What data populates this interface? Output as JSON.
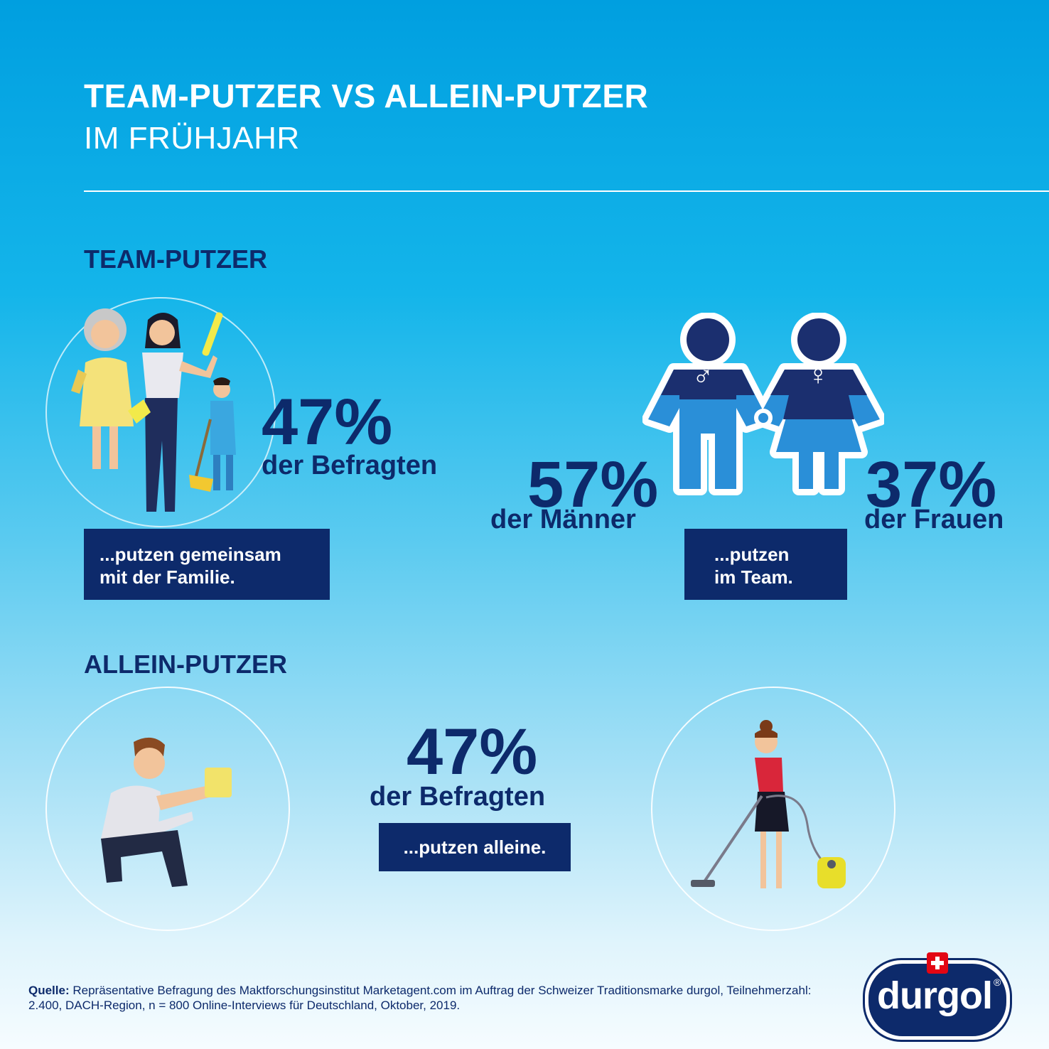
{
  "header": {
    "title": "TEAM-PUTZER VS ALLEIN-PUTZER",
    "subtitle": "IM FRÜHJAHR"
  },
  "team": {
    "heading": "TEAM-PUTZER",
    "family_percent": "47%",
    "family_label": "der Befragten",
    "family_box_line1": "...putzen gemeinsam",
    "family_box_line2": "mit der Familie.",
    "men_percent": "57%",
    "men_label": "der Männer",
    "women_percent": "37%",
    "women_label": "der Frauen",
    "team_box_line1": "...putzen",
    "team_box_line2": "im Team."
  },
  "alone": {
    "heading": "ALLEIN-PUTZER",
    "percent": "47%",
    "label": "der Befragten",
    "box": "...putzen alleine."
  },
  "footer": {
    "source_label": "Quelle:",
    "source_text": "Repräsentative Befragung des Maktforschungsinstitut Marketagent.com im Auftrag der Schweizer Traditionsmarke durgol, Teilnehmerzahl: 2.400, DACH-Region, n = 800 Online-Interviews für Deutschland, Oktober, 2019.",
    "logo_text": "durgol",
    "logo_mark": "®"
  },
  "colors": {
    "navy": "#0d2a6b",
    "sky_top": "#009fe0",
    "sky_bottom": "#f6fcff",
    "figure_blue": "#1c8fd6"
  },
  "icons": [
    "family-cleaning-illustration",
    "male-symbol-icon",
    "female-symbol-icon",
    "man-cleaning-illustration",
    "woman-vacuuming-illustration",
    "swiss-cross-icon"
  ]
}
